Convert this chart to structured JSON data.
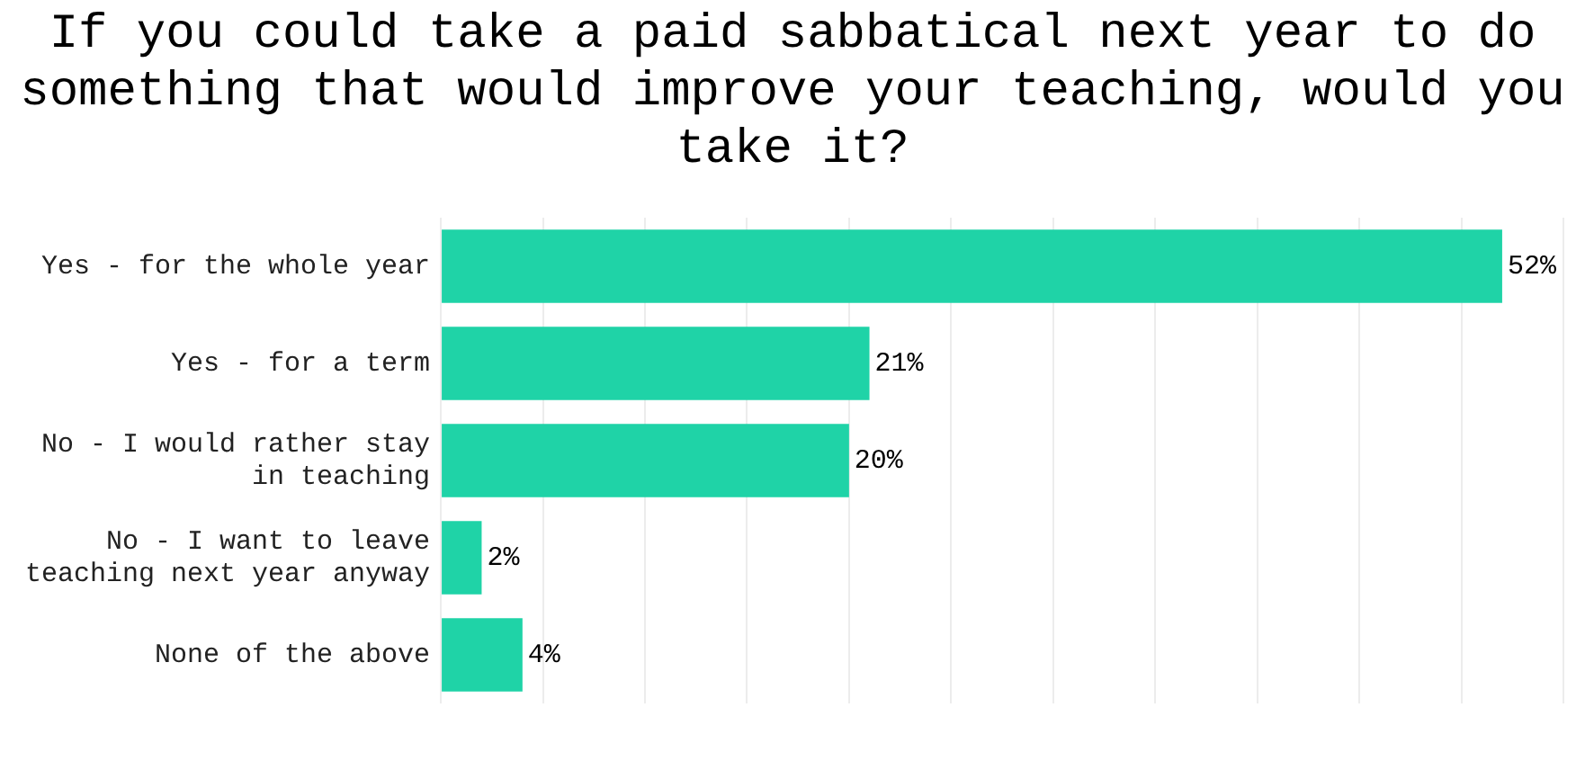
{
  "chart_data": {
    "type": "bar",
    "orientation": "horizontal",
    "title": "If you could take a paid sabbatical next year to do something that would improve your teaching, would you take it?",
    "categories": [
      "Yes - for the whole year",
      "Yes - for a term",
      "No - I would rather stay in teaching",
      "No - I want to leave teaching next year anyway",
      "None of the above"
    ],
    "values": [
      52,
      21,
      20,
      2,
      4
    ],
    "value_labels": [
      "52%",
      "21%",
      "20%",
      "2%",
      "4%"
    ],
    "color": "#1fd3a7",
    "xlim": [
      0,
      55
    ],
    "xticks": [
      {
        "value": 0,
        "label": null
      },
      {
        "value": 5,
        "label": null
      },
      {
        "value": 10,
        "label": null
      },
      {
        "value": 15,
        "label": null
      },
      {
        "value": 20,
        "label": null
      },
      {
        "value": 25,
        "label": null
      },
      {
        "value": 30,
        "label": null
      },
      {
        "value": 35,
        "label": null
      },
      {
        "value": 40,
        "label": null
      },
      {
        "value": 45,
        "label": null
      },
      {
        "value": 50,
        "label": null
      },
      {
        "value": 55,
        "label": null
      }
    ],
    "tick_labels": "y",
    "grid": "x",
    "legend": false
  }
}
